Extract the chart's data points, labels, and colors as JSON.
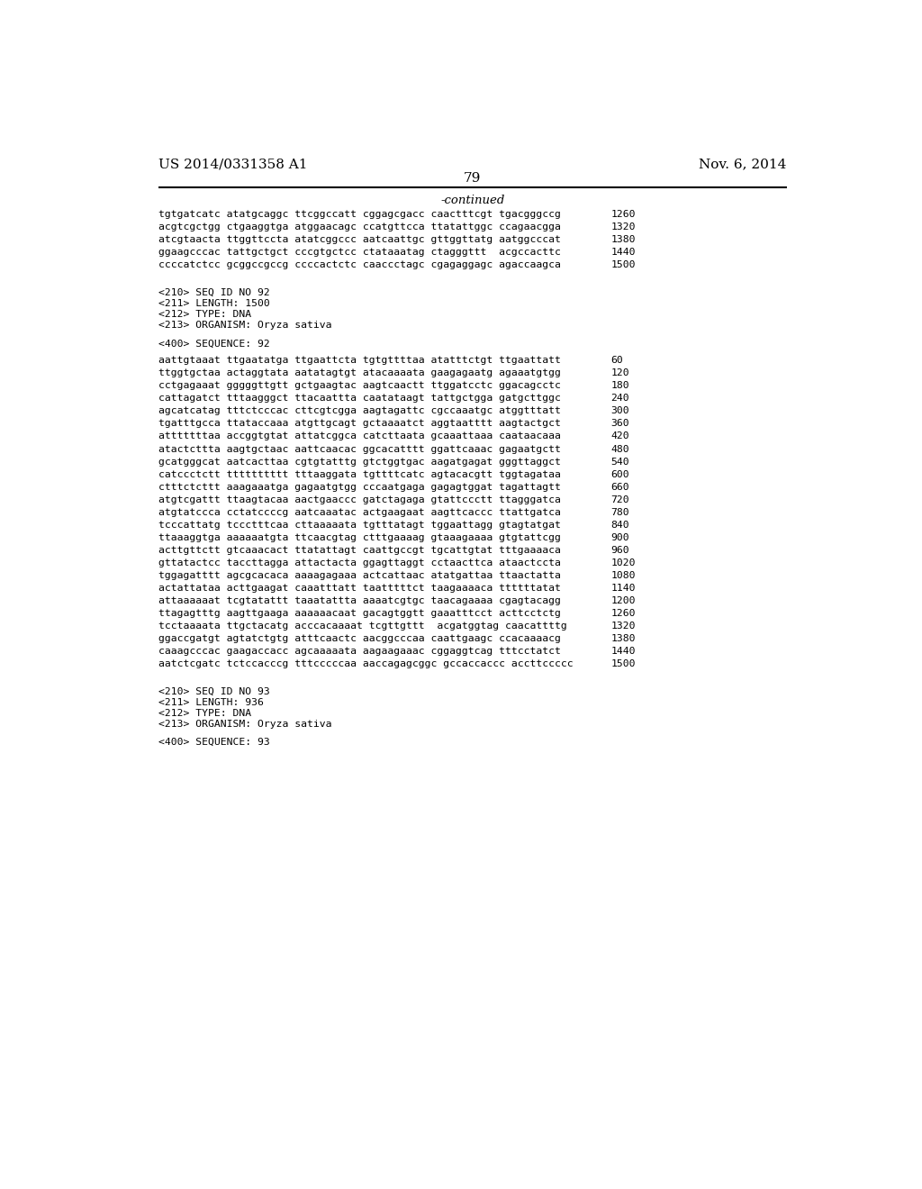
{
  "header_left": "US 2014/0331358 A1",
  "header_right": "Nov. 6, 2014",
  "page_number": "79",
  "continued_label": "-continued",
  "background_color": "#ffffff",
  "text_color": "#000000",
  "seq_lines_top": [
    {
      "text": "tgtgatcatc atatgcaggc ttcggccatt cggagcgacc caactttcgt tgacgggccg",
      "num": "1260"
    },
    {
      "text": "acgtcgctgg ctgaaggtga atggaacagc ccatgttcca ttatattggc ccagaacgga",
      "num": "1320"
    },
    {
      "text": "atcgtaacta ttggttccta atatcggccc aatcaattgc gttggttatg aatggcccat",
      "num": "1380"
    },
    {
      "text": "ggaagcccac tattgctgct cccgtgctcc ctataaatag ctagggttt  acgccacttc",
      "num": "1440"
    },
    {
      "text": "ccccatctcc gcggccgccg ccccactctc caaccctagc cgagaggagc agaccaagca",
      "num": "1500"
    }
  ],
  "meta_92": [
    "<210> SEQ ID NO 92",
    "<211> LENGTH: 1500",
    "<212> TYPE: DNA",
    "<213> ORGANISM: Oryza sativa"
  ],
  "seq400_92": "<400> SEQUENCE: 92",
  "seq_lines_92": [
    {
      "text": "aattgtaaat ttgaatatga ttgaattcta tgtgttttaa atatttctgt ttgaattatt",
      "num": "60"
    },
    {
      "text": "ttggtgctaa actaggtata aatatagtgt atacaaaata gaagagaatg agaaatgtgg",
      "num": "120"
    },
    {
      "text": "cctgagaaat gggggttgtt gctgaagtac aagtcaactt ttggatcctc ggacagcctc",
      "num": "180"
    },
    {
      "text": "cattagatct tttaagggct ttacaattta caatataagt tattgctgga gatgcttggc",
      "num": "240"
    },
    {
      "text": "agcatcatag tttctcccac cttcgtcgga aagtagattc cgccaaatgc atggtttatt",
      "num": "300"
    },
    {
      "text": "tgatttgcca ttataccaaa atgttgcagt gctaaaatct aggtaatttt aagtactgct",
      "num": "360"
    },
    {
      "text": "atttttttaa accggtgtat attatcggca catcttaata gcaaattaaa caataacaaa",
      "num": "420"
    },
    {
      "text": "atactcttta aagtgctaac aattcaacac ggcacatttt ggattcaaac gagaatgctt",
      "num": "480"
    },
    {
      "text": "gcatgggcat aatcacttaa cgtgtatttg gtctggtgac aagatgagat gggttaggct",
      "num": "540"
    },
    {
      "text": "catccctctt tttttttttt tttaaggata tgttttcatc agtacacgtt tggtagataa",
      "num": "600"
    },
    {
      "text": "ctttctcttt aaagaaatga gagaatgtgg cccaatgaga gagagtggat tagattagtt",
      "num": "660"
    },
    {
      "text": "atgtcgattt ttaagtacaa aactgaaccc gatctagaga gtattccctt ttagggatca",
      "num": "720"
    },
    {
      "text": "atgtatccca cctatccccg aatcaaatac actgaagaat aagttcaccc ttattgatca",
      "num": "780"
    },
    {
      "text": "tcccattatg tccctttcaa cttaaaaata tgtttatagt tggaattagg gtagtatgat",
      "num": "840"
    },
    {
      "text": "ttaaaggtga aaaaaatgta ttcaacgtag ctttgaaaag gtaaagaaaa gtgtattcgg",
      "num": "900"
    },
    {
      "text": "acttgttctt gtcaaacact ttatattagt caattgccgt tgcattgtat tttgaaaaca",
      "num": "960"
    },
    {
      "text": "gttatactcc taccttagga attactacta ggagttaggt cctaacttca ataactccta",
      "num": "1020"
    },
    {
      "text": "tggagatttt agcgcacaca aaaagagaaa actcattaac atatgattaa ttaactatta",
      "num": "1080"
    },
    {
      "text": "actattataa acttgaagat caaatttatt taatttttct taagaaaaca ttttttatat",
      "num": "1140"
    },
    {
      "text": "attaaaaaat tcgtatattt taaatattta aaaatcgtgc taacagaaaa cgagtacagg",
      "num": "1200"
    },
    {
      "text": "ttagagtttg aagttgaaga aaaaaacaat gacagtggtt gaaatttcct acttcctctg",
      "num": "1260"
    },
    {
      "text": "tcctaaaata ttgctacatg acccacaaaat tcgttgttt  acgatggtag caacattttg",
      "num": "1320"
    },
    {
      "text": "ggaccgatgt agtatctgtg atttcaactc aacggcccaa caattgaagc ccacaaaacg",
      "num": "1380"
    },
    {
      "text": "caaagcccac gaagaccacc agcaaaaata aagaagaaac cggaggtcag tttcctatct",
      "num": "1440"
    },
    {
      "text": "aatctcgatc tctccacccg tttcccccaa aaccagagcggc gccaccaccc accttccccc",
      "num": "1500"
    }
  ],
  "meta_93": [
    "<210> SEQ ID NO 93",
    "<211> LENGTH: 936",
    "<212> TYPE: DNA",
    "<213> ORGANISM: Oryza sativa"
  ],
  "seq400_93": "<400> SEQUENCE: 93"
}
